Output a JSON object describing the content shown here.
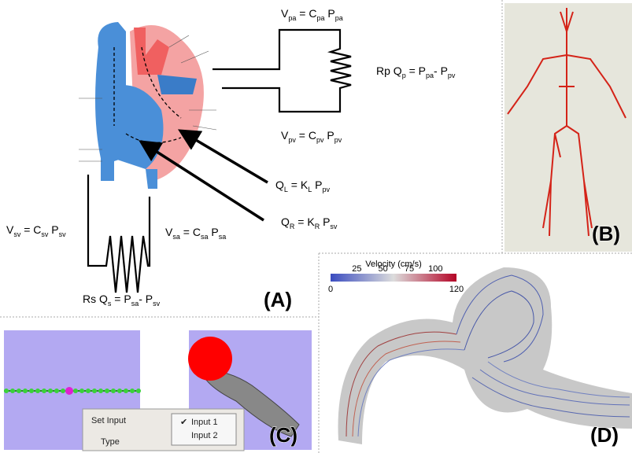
{
  "panel_a": {
    "label": "(A)",
    "equations": [
      [
        [
          "V",
          "pa"
        ],
        [
          " = C",
          "pa"
        ],
        [
          " P",
          "pa"
        ]
      ],
      [
        [
          "Rp Q",
          "p"
        ],
        [
          " = P",
          "pa"
        ],
        [
          "- P",
          "pv"
        ]
      ],
      [
        [
          "V",
          "pv"
        ],
        [
          " = C",
          "pv"
        ],
        [
          " P",
          "pv"
        ]
      ],
      [
        [
          "Q",
          "L"
        ],
        [
          " = K",
          "L"
        ],
        [
          " P",
          "pv"
        ]
      ],
      [
        [
          "Q",
          "R"
        ],
        [
          " = K",
          "R"
        ],
        [
          " P",
          "sv"
        ]
      ],
      [
        [
          "V",
          "sv"
        ],
        [
          " = C",
          "sv"
        ],
        [
          " P",
          "sv"
        ]
      ],
      [
        [
          "V",
          "sa"
        ],
        [
          " = C",
          "sa"
        ],
        [
          " P",
          "sa"
        ]
      ],
      [
        [
          "Rs Q",
          "s"
        ],
        [
          " = P",
          "sa"
        ],
        [
          "- P",
          "sv"
        ]
      ]
    ]
  },
  "panel_b": {
    "label": "(B)"
  },
  "panel_c": {
    "label": "(C)",
    "menu": [
      "Set Input",
      "Type"
    ],
    "submenu": [
      "Input 1",
      "Input 2"
    ]
  },
  "panel_d": {
    "label": "(D)",
    "colorbar": {
      "title": "Velocity (cm/s)",
      "ticks_top": [
        25,
        50,
        75,
        100
      ],
      "ticks_bottom": [
        0,
        120
      ]
    }
  }
}
